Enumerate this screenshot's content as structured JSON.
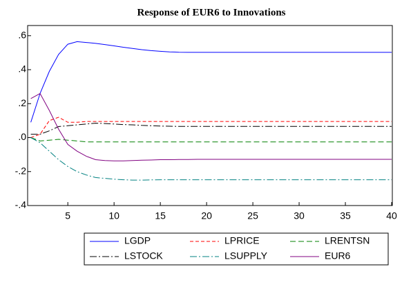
{
  "chart_data": {
    "type": "line",
    "title": "Response of EUR6 to Innovations",
    "x": [
      1,
      2,
      3,
      4,
      5,
      6,
      7,
      8,
      9,
      10,
      11,
      12,
      13,
      14,
      15,
      16,
      17,
      18,
      19,
      20,
      21,
      22,
      23,
      24,
      25,
      26,
      27,
      28,
      29,
      30,
      31,
      32,
      33,
      34,
      35,
      36,
      37,
      38,
      39,
      40
    ],
    "xlim": [
      1,
      40
    ],
    "xticks": [
      5,
      10,
      15,
      20,
      25,
      30,
      35,
      40
    ],
    "ylim": [
      -0.4,
      0.66
    ],
    "yticks": [
      {
        "value": -0.4,
        "label": "-.4"
      },
      {
        "value": -0.2,
        "label": "-.2"
      },
      {
        "value": 0,
        "label": ".0"
      },
      {
        "value": 0.2,
        "label": ".2"
      },
      {
        "value": 0.4,
        "label": ".4"
      },
      {
        "value": 0.6,
        "label": ".6"
      }
    ],
    "legend": "bottom",
    "series": [
      {
        "name": "LGDP",
        "color": "#0000ff",
        "dash": "none",
        "values": [
          0.09,
          0.26,
          0.39,
          0.49,
          0.55,
          0.565,
          0.56,
          0.555,
          0.548,
          0.54,
          0.532,
          0.525,
          0.518,
          0.512,
          0.508,
          0.505,
          0.503,
          0.502,
          0.502,
          0.502,
          0.502,
          0.502,
          0.502,
          0.502,
          0.502,
          0.502,
          0.502,
          0.502,
          0.502,
          0.502,
          0.502,
          0.502,
          0.502,
          0.502,
          0.502,
          0.502,
          0.502,
          0.502,
          0.502,
          0.502
        ]
      },
      {
        "name": "LPRICE",
        "color": "#ff0000",
        "dash": "5,3",
        "values": [
          0,
          0.02,
          0.1,
          0.12,
          0.09,
          0.09,
          0.095,
          0.095,
          0.095,
          0.095,
          0.095,
          0.095,
          0.095,
          0.095,
          0.095,
          0.095,
          0.095,
          0.095,
          0.095,
          0.095,
          0.095,
          0.095,
          0.095,
          0.095,
          0.095,
          0.095,
          0.095,
          0.095,
          0.095,
          0.095,
          0.095,
          0.095,
          0.095,
          0.095,
          0.095,
          0.095,
          0.095,
          0.095,
          0.095,
          0.095
        ]
      },
      {
        "name": "LRENTSN",
        "color": "#008000",
        "dash": "8,4",
        "values": [
          0,
          -0.02,
          -0.015,
          -0.01,
          -0.015,
          -0.02,
          -0.025,
          -0.025,
          -0.025,
          -0.025,
          -0.025,
          -0.025,
          -0.025,
          -0.025,
          -0.025,
          -0.025,
          -0.025,
          -0.025,
          -0.025,
          -0.025,
          -0.025,
          -0.025,
          -0.025,
          -0.025,
          -0.025,
          -0.025,
          -0.025,
          -0.025,
          -0.025,
          -0.025,
          -0.025,
          -0.025,
          -0.025,
          -0.025,
          -0.025,
          -0.025,
          -0.025,
          -0.025,
          -0.025,
          -0.025
        ]
      },
      {
        "name": "LSTOCK",
        "color": "#000000",
        "dash": "10,3,2,3",
        "values": [
          0.02,
          0.02,
          0.04,
          0.065,
          0.07,
          0.075,
          0.08,
          0.085,
          0.083,
          0.08,
          0.077,
          0.075,
          0.072,
          0.07,
          0.068,
          0.067,
          0.066,
          0.066,
          0.066,
          0.066,
          0.066,
          0.066,
          0.066,
          0.066,
          0.066,
          0.066,
          0.066,
          0.066,
          0.066,
          0.066,
          0.066,
          0.066,
          0.066,
          0.066,
          0.066,
          0.066,
          0.066,
          0.066,
          0.066,
          0.066
        ]
      },
      {
        "name": "LSUPPLY",
        "color": "#008080",
        "dash": "10,3,2,3",
        "values": [
          0,
          -0.03,
          -0.08,
          -0.13,
          -0.17,
          -0.2,
          -0.22,
          -0.235,
          -0.24,
          -0.245,
          -0.248,
          -0.25,
          -0.25,
          -0.249,
          -0.248,
          -0.248,
          -0.248,
          -0.248,
          -0.248,
          -0.248,
          -0.248,
          -0.248,
          -0.248,
          -0.248,
          -0.248,
          -0.248,
          -0.248,
          -0.248,
          -0.248,
          -0.248,
          -0.248,
          -0.248,
          -0.248,
          -0.248,
          -0.248,
          -0.248,
          -0.248,
          -0.248,
          -0.248,
          -0.248
        ]
      },
      {
        "name": "EUR6",
        "color": "#800080",
        "dash": "none",
        "values": [
          0.23,
          0.26,
          0.16,
          0.05,
          -0.04,
          -0.08,
          -0.11,
          -0.13,
          -0.135,
          -0.137,
          -0.137,
          -0.135,
          -0.133,
          -0.132,
          -0.13,
          -0.13,
          -0.129,
          -0.129,
          -0.128,
          -0.128,
          -0.128,
          -0.128,
          -0.128,
          -0.128,
          -0.128,
          -0.128,
          -0.128,
          -0.128,
          -0.128,
          -0.128,
          -0.128,
          -0.128,
          -0.128,
          -0.128,
          -0.128,
          -0.128,
          -0.128,
          -0.128,
          -0.128,
          -0.128
        ]
      }
    ]
  }
}
